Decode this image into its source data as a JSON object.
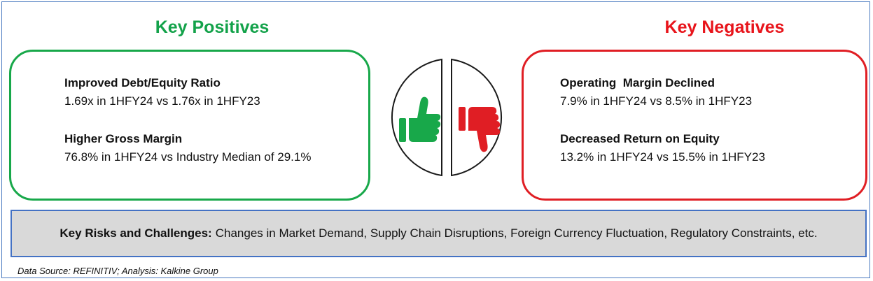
{
  "positives": {
    "heading": "Key Positives",
    "items": [
      {
        "title": "Improved Debt/Equity Ratio",
        "detail": "1.69x in 1HFY24 vs 1.76x in 1HFY23"
      },
      {
        "title": "Higher Gross Margin",
        "detail": "76.8% in 1HFY24 vs Industry Median of 29.1%"
      }
    ]
  },
  "negatives": {
    "heading": "Key Negatives",
    "items": [
      {
        "title": "Operating  Margin Declined",
        "detail": "7.9% in 1HFY24 vs 8.5% in 1HFY23"
      },
      {
        "title": "Decreased Return on Equity",
        "detail": "13.2% in 1HFY24 vs 15.5% in 1HFY23"
      }
    ]
  },
  "icons": {
    "thumbs_up": "thumbs-up-icon",
    "thumbs_down": "thumbs-down-icon"
  },
  "colors": {
    "positive": "#18a84a",
    "negative": "#e01e24",
    "risk_border": "#4472c4",
    "risk_bg": "#d9d9d9"
  },
  "risks": {
    "label": "Key Risks and Challenges:",
    "text": "Changes in Market Demand, Supply Chain Disruptions, Foreign Currency Fluctuation, Regulatory Constraints, etc."
  },
  "source": "Data Source: REFINITIV; Analysis: Kalkine Group"
}
